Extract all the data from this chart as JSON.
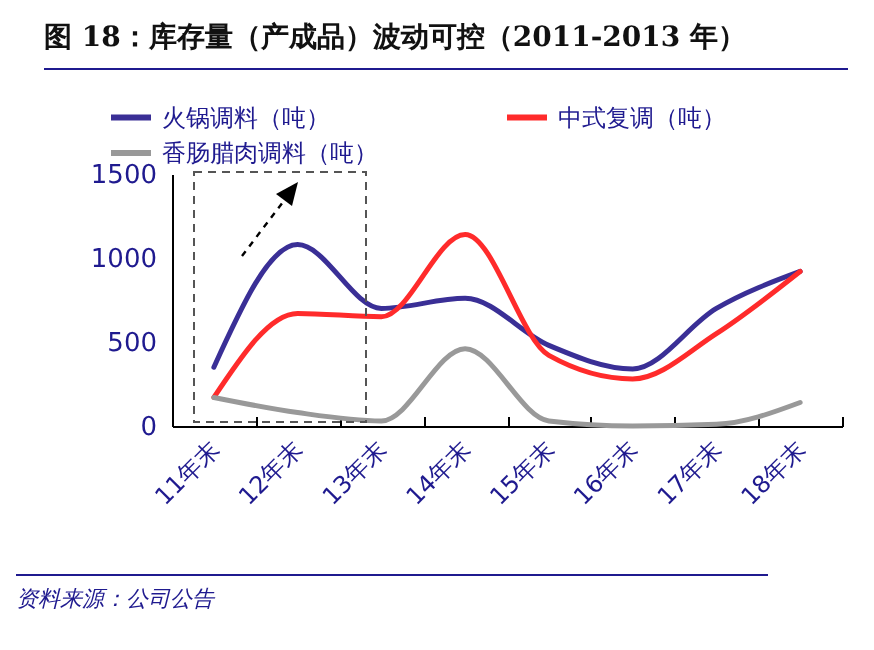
{
  "chart_data": {
    "type": "line",
    "title": "图 18：库存量（产成品）波动可控（2011-2013 年）",
    "categories": [
      "11年末",
      "12年末",
      "13年末",
      "14年末",
      "15年末",
      "16年末",
      "17年末",
      "18年末"
    ],
    "series": [
      {
        "name": "火锅调料（吨）",
        "color": "#3a2f96",
        "values": [
          350,
          1080,
          700,
          760,
          480,
          340,
          700,
          920
        ]
      },
      {
        "name": "中式复调（吨）",
        "color": "#ff2b2b",
        "values": [
          170,
          670,
          650,
          1140,
          420,
          280,
          550,
          920
        ]
      },
      {
        "name": "香肠腊肉调料（吨）",
        "color": "#999999",
        "values": [
          170,
          80,
          30,
          460,
          30,
          0,
          10,
          140
        ]
      }
    ],
    "ylim": [
      0,
      1500
    ],
    "yticks": [
      0,
      500,
      1000,
      1500
    ],
    "grid": false,
    "legend": "top left",
    "marker": "none",
    "line_style": "solid",
    "annotations": [
      "资料来源：公司公告"
    ]
  }
}
